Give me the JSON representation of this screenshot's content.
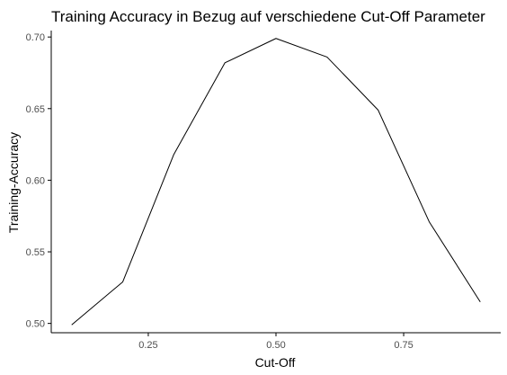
{
  "chart_data": {
    "type": "line",
    "title": "Training Accuracy in Bezug auf verschiedene Cut-Off Parameter",
    "xlabel": "Cut-Off",
    "ylabel": "Training-Accuracy",
    "x": [
      0.1,
      0.2,
      0.3,
      0.4,
      0.5,
      0.6,
      0.7,
      0.8,
      0.9
    ],
    "series": [
      {
        "values": [
          0.499,
          0.529,
          0.618,
          0.682,
          0.699,
          0.686,
          0.649,
          0.571,
          0.515
        ]
      }
    ],
    "xlim": [
      0.06,
      0.94
    ],
    "ylim": [
      0.4935,
      0.7045
    ],
    "x_ticks": [
      0.25,
      0.5,
      0.75
    ],
    "x_tick_labels": [
      "0.25",
      "0.50",
      "0.75"
    ],
    "y_ticks": [
      0.5,
      0.55,
      0.6,
      0.65,
      0.7
    ],
    "y_tick_labels": [
      "0.50",
      "0.55",
      "0.60",
      "0.65",
      "0.70"
    ],
    "grid": false,
    "line_color": "#000000",
    "axis_color": "#000000"
  }
}
